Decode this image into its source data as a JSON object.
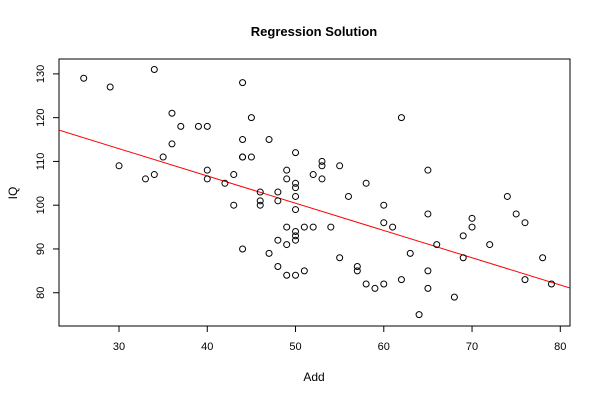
{
  "chart_data": {
    "type": "scatter",
    "title": "Regression Solution",
    "xlabel": "Add",
    "ylabel": "IQ",
    "xlim": [
      23.2,
      81.1
    ],
    "ylim": [
      72.4,
      133.4
    ],
    "xticks": [
      30,
      40,
      50,
      60,
      70,
      80
    ],
    "yticks": [
      80,
      90,
      100,
      110,
      120,
      130
    ],
    "grid": false,
    "legend": "none",
    "point_color": "#000000",
    "regression_color": "#ff0000",
    "points": [
      {
        "x": 26,
        "y": 129
      },
      {
        "x": 29,
        "y": 127
      },
      {
        "x": 30,
        "y": 109
      },
      {
        "x": 33,
        "y": 106
      },
      {
        "x": 34,
        "y": 131
      },
      {
        "x": 34,
        "y": 107
      },
      {
        "x": 35,
        "y": 111
      },
      {
        "x": 36,
        "y": 121
      },
      {
        "x": 36,
        "y": 114
      },
      {
        "x": 37,
        "y": 118
      },
      {
        "x": 39,
        "y": 118
      },
      {
        "x": 40,
        "y": 118
      },
      {
        "x": 40,
        "y": 108
      },
      {
        "x": 40,
        "y": 106
      },
      {
        "x": 42,
        "y": 105
      },
      {
        "x": 43,
        "y": 107
      },
      {
        "x": 43,
        "y": 100
      },
      {
        "x": 44,
        "y": 128
      },
      {
        "x": 44,
        "y": 115
      },
      {
        "x": 44,
        "y": 111
      },
      {
        "x": 44,
        "y": 111
      },
      {
        "x": 44,
        "y": 90
      },
      {
        "x": 45,
        "y": 120
      },
      {
        "x": 45,
        "y": 111
      },
      {
        "x": 46,
        "y": 103
      },
      {
        "x": 46,
        "y": 101
      },
      {
        "x": 46,
        "y": 100
      },
      {
        "x": 47,
        "y": 115
      },
      {
        "x": 47,
        "y": 89
      },
      {
        "x": 48,
        "y": 103
      },
      {
        "x": 48,
        "y": 101
      },
      {
        "x": 48,
        "y": 92
      },
      {
        "x": 48,
        "y": 86
      },
      {
        "x": 49,
        "y": 108
      },
      {
        "x": 49,
        "y": 106
      },
      {
        "x": 49,
        "y": 95
      },
      {
        "x": 49,
        "y": 91
      },
      {
        "x": 49,
        "y": 84
      },
      {
        "x": 50,
        "y": 112
      },
      {
        "x": 50,
        "y": 105
      },
      {
        "x": 50,
        "y": 104
      },
      {
        "x": 50,
        "y": 102
      },
      {
        "x": 50,
        "y": 99
      },
      {
        "x": 50,
        "y": 94
      },
      {
        "x": 50,
        "y": 93
      },
      {
        "x": 50,
        "y": 92
      },
      {
        "x": 50,
        "y": 84
      },
      {
        "x": 51,
        "y": 95
      },
      {
        "x": 51,
        "y": 85
      },
      {
        "x": 52,
        "y": 107
      },
      {
        "x": 52,
        "y": 95
      },
      {
        "x": 53,
        "y": 110
      },
      {
        "x": 53,
        "y": 109
      },
      {
        "x": 53,
        "y": 106
      },
      {
        "x": 54,
        "y": 95
      },
      {
        "x": 55,
        "y": 109
      },
      {
        "x": 55,
        "y": 88
      },
      {
        "x": 56,
        "y": 102
      },
      {
        "x": 57,
        "y": 86
      },
      {
        "x": 57,
        "y": 85
      },
      {
        "x": 58,
        "y": 105
      },
      {
        "x": 58,
        "y": 82
      },
      {
        "x": 59,
        "y": 81
      },
      {
        "x": 60,
        "y": 100
      },
      {
        "x": 60,
        "y": 96
      },
      {
        "x": 60,
        "y": 82
      },
      {
        "x": 61,
        "y": 95
      },
      {
        "x": 62,
        "y": 120
      },
      {
        "x": 62,
        "y": 83
      },
      {
        "x": 63,
        "y": 89
      },
      {
        "x": 64,
        "y": 75
      },
      {
        "x": 65,
        "y": 108
      },
      {
        "x": 65,
        "y": 98
      },
      {
        "x": 65,
        "y": 85
      },
      {
        "x": 65,
        "y": 81
      },
      {
        "x": 66,
        "y": 91
      },
      {
        "x": 68,
        "y": 79
      },
      {
        "x": 69,
        "y": 93
      },
      {
        "x": 69,
        "y": 88
      },
      {
        "x": 70,
        "y": 97
      },
      {
        "x": 70,
        "y": 95
      },
      {
        "x": 72,
        "y": 91
      },
      {
        "x": 74,
        "y": 102
      },
      {
        "x": 75,
        "y": 98
      },
      {
        "x": 76,
        "y": 96
      },
      {
        "x": 76,
        "y": 83
      },
      {
        "x": 78,
        "y": 88
      },
      {
        "x": 79,
        "y": 82
      }
    ],
    "regression_line": {
      "intercept": 131.6,
      "slope": -0.623
    }
  }
}
